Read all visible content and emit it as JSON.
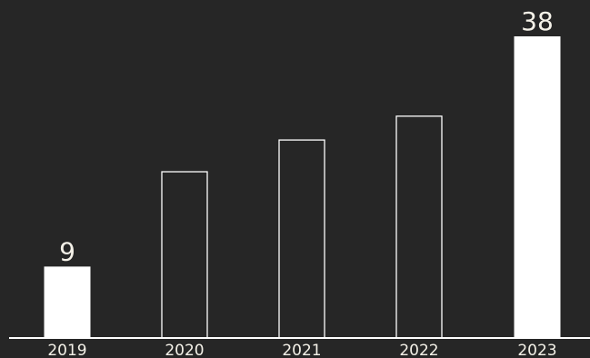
{
  "chart_data": {
    "type": "bar",
    "categories": [
      "2019",
      "2020",
      "2021",
      "2022",
      "2023"
    ],
    "values": [
      9,
      21,
      25,
      28,
      38
    ],
    "data_labels": [
      "9",
      "",
      "",
      "",
      "38"
    ],
    "filled": [
      true,
      false,
      false,
      false,
      true
    ],
    "title": "",
    "xlabel": "",
    "ylabel": "",
    "ylim": [
      0,
      38
    ],
    "grid": false,
    "legend": "none",
    "colors": {
      "background": "#262626",
      "bar": "#ffffff",
      "axis": "#ffffff",
      "text": "#f4f1e8"
    }
  }
}
